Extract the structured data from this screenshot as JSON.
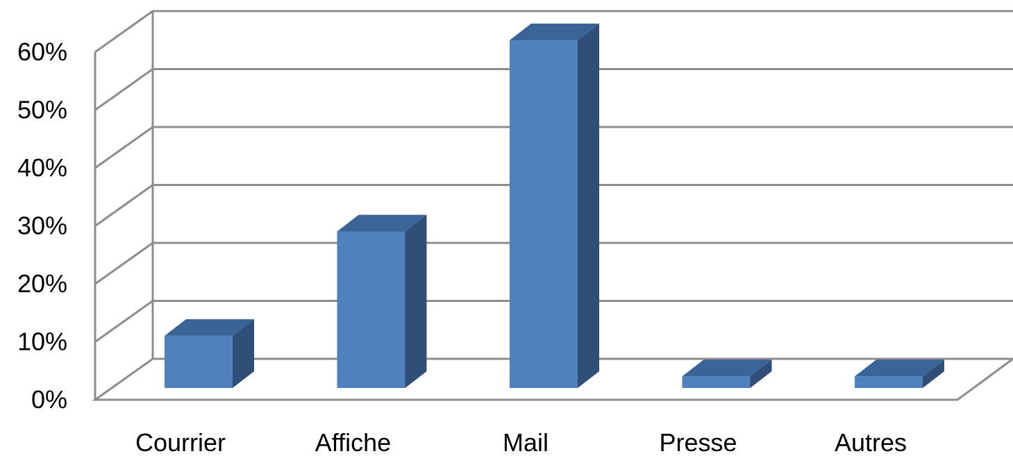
{
  "chart_data": {
    "type": "bar",
    "style": "3d-column",
    "categories": [
      "Courrier",
      "Affiche",
      "Mail",
      "Presse",
      "Autres"
    ],
    "values": [
      9,
      27,
      60,
      2,
      2
    ],
    "ylim": [
      0,
      60
    ],
    "yticks": [
      "0%",
      "10%",
      "20%",
      "30%",
      "40%",
      "50%",
      "60%"
    ],
    "ytick_values": [
      0,
      10,
      20,
      30,
      40,
      50,
      60
    ],
    "grid": true,
    "legend": "none",
    "colors": {
      "bar_front": "#4f81bd",
      "bar_top": "#3a6496",
      "bar_side": "#2f4e78",
      "grid": "#8c8c8c"
    }
  }
}
